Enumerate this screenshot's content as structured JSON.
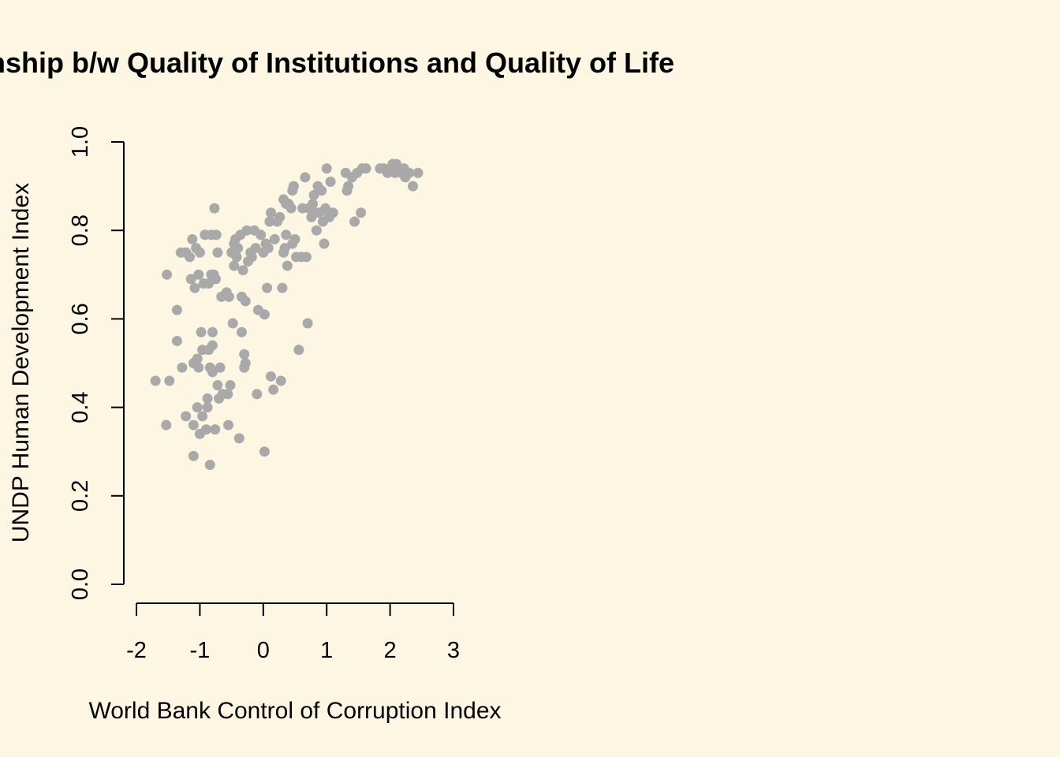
{
  "background_color": "#FDF6E3",
  "point_color": "#A9A9A9",
  "chart_data": {
    "type": "scatter",
    "title": "Relationship b/w Quality of Institutions and Quality of Life",
    "xlabel": "World Bank Control of Corruption Index",
    "ylabel": "UNDP Human Development Index",
    "xlim": [
      -2,
      3
    ],
    "ylim": [
      0,
      1
    ],
    "x_ticks": [
      -2,
      -1,
      0,
      1,
      2,
      3
    ],
    "y_ticks": [
      0.0,
      0.2,
      0.4,
      0.6,
      0.8,
      1.0
    ],
    "x_tick_labels": [
      "-2",
      "-1",
      "0",
      "1",
      "2",
      "3"
    ],
    "y_tick_labels": [
      "0.0",
      "0.2",
      "0.4",
      "0.6",
      "0.8",
      "1.0"
    ],
    "grid": false,
    "points": [
      [
        -1.7,
        0.46
      ],
      [
        -1.53,
        0.36
      ],
      [
        -1.48,
        0.46
      ],
      [
        -1.52,
        0.7
      ],
      [
        -1.36,
        0.55
      ],
      [
        -1.36,
        0.62
      ],
      [
        -1.3,
        0.75
      ],
      [
        -1.28,
        0.49
      ],
      [
        -1.22,
        0.38
      ],
      [
        -1.22,
        0.75
      ],
      [
        -1.16,
        0.74
      ],
      [
        -1.14,
        0.69
      ],
      [
        -1.12,
        0.78
      ],
      [
        -1.1,
        0.36
      ],
      [
        -1.1,
        0.29
      ],
      [
        -1.1,
        0.5
      ],
      [
        -1.08,
        0.67
      ],
      [
        -1.06,
        0.76
      ],
      [
        -1.04,
        0.4
      ],
      [
        -1.04,
        0.51
      ],
      [
        -1.02,
        0.7
      ],
      [
        -1.02,
        0.49
      ],
      [
        -1.0,
        0.34
      ],
      [
        -1.0,
        0.75
      ],
      [
        -0.98,
        0.57
      ],
      [
        -0.96,
        0.38
      ],
      [
        -0.96,
        0.53
      ],
      [
        -0.94,
        0.68
      ],
      [
        -0.92,
        0.79
      ],
      [
        -0.9,
        0.35
      ],
      [
        -0.88,
        0.4
      ],
      [
        -0.88,
        0.42
      ],
      [
        -0.86,
        0.53
      ],
      [
        -0.86,
        0.68
      ],
      [
        -0.84,
        0.49
      ],
      [
        -0.84,
        0.27
      ],
      [
        -0.82,
        0.7
      ],
      [
        -0.82,
        0.79
      ],
      [
        -0.8,
        0.48
      ],
      [
        -0.8,
        0.57
      ],
      [
        -0.8,
        0.54
      ],
      [
        -0.78,
        0.7
      ],
      [
        -0.77,
        0.85
      ],
      [
        -0.76,
        0.35
      ],
      [
        -0.75,
        0.69
      ],
      [
        -0.74,
        0.79
      ],
      [
        -0.72,
        0.75
      ],
      [
        -0.72,
        0.45
      ],
      [
        -0.7,
        0.42
      ],
      [
        -0.68,
        0.49
      ],
      [
        -0.66,
        0.65
      ],
      [
        -0.64,
        0.43
      ],
      [
        -0.58,
        0.66
      ],
      [
        -0.56,
        0.43
      ],
      [
        -0.55,
        0.36
      ],
      [
        -0.54,
        0.65
      ],
      [
        -0.52,
        0.45
      ],
      [
        -0.5,
        0.75
      ],
      [
        -0.48,
        0.59
      ],
      [
        -0.46,
        0.72
      ],
      [
        -0.46,
        0.77
      ],
      [
        -0.44,
        0.78
      ],
      [
        -0.42,
        0.74
      ],
      [
        -0.4,
        0.76
      ],
      [
        -0.38,
        0.33
      ],
      [
        -0.36,
        0.79
      ],
      [
        -0.34,
        0.57
      ],
      [
        -0.34,
        0.65
      ],
      [
        -0.32,
        0.71
      ],
      [
        -0.3,
        0.49
      ],
      [
        -0.3,
        0.52
      ],
      [
        -0.28,
        0.5
      ],
      [
        -0.28,
        0.64
      ],
      [
        -0.26,
        0.8
      ],
      [
        -0.24,
        0.73
      ],
      [
        -0.2,
        0.75
      ],
      [
        -0.18,
        0.74
      ],
      [
        -0.14,
        0.8
      ],
      [
        -0.12,
        0.76
      ],
      [
        -0.1,
        0.43
      ],
      [
        -0.08,
        0.62
      ],
      [
        -0.04,
        0.79
      ],
      [
        0.0,
        0.75
      ],
      [
        0.02,
        0.3
      ],
      [
        0.02,
        0.61
      ],
      [
        0.04,
        0.77
      ],
      [
        0.06,
        0.67
      ],
      [
        0.08,
        0.76
      ],
      [
        0.1,
        0.82
      ],
      [
        0.12,
        0.84
      ],
      [
        0.12,
        0.47
      ],
      [
        0.16,
        0.44
      ],
      [
        0.18,
        0.78
      ],
      [
        0.22,
        0.82
      ],
      [
        0.26,
        0.83
      ],
      [
        0.28,
        0.46
      ],
      [
        0.3,
        0.67
      ],
      [
        0.32,
        0.87
      ],
      [
        0.32,
        0.75
      ],
      [
        0.34,
        0.76
      ],
      [
        0.36,
        0.86
      ],
      [
        0.36,
        0.79
      ],
      [
        0.38,
        0.72
      ],
      [
        0.4,
        0.86
      ],
      [
        0.44,
        0.85
      ],
      [
        0.46,
        0.77
      ],
      [
        0.46,
        0.89
      ],
      [
        0.48,
        0.9
      ],
      [
        0.5,
        0.78
      ],
      [
        0.52,
        0.74
      ],
      [
        0.56,
        0.53
      ],
      [
        0.6,
        0.74
      ],
      [
        0.62,
        0.85
      ],
      [
        0.66,
        0.92
      ],
      [
        0.68,
        0.74
      ],
      [
        0.7,
        0.59
      ],
      [
        0.72,
        0.85
      ],
      [
        0.76,
        0.83
      ],
      [
        0.78,
        0.86
      ],
      [
        0.8,
        0.88
      ],
      [
        0.82,
        0.84
      ],
      [
        0.84,
        0.8
      ],
      [
        0.86,
        0.9
      ],
      [
        0.88,
        0.84
      ],
      [
        0.92,
        0.89
      ],
      [
        0.94,
        0.82
      ],
      [
        0.96,
        0.77
      ],
      [
        0.98,
        0.85
      ],
      [
        1.0,
        0.94
      ],
      [
        1.02,
        0.84
      ],
      [
        1.04,
        0.83
      ],
      [
        1.06,
        0.91
      ],
      [
        1.1,
        0.84
      ],
      [
        1.3,
        0.93
      ],
      [
        1.32,
        0.89
      ],
      [
        1.34,
        0.9
      ],
      [
        1.4,
        0.92
      ],
      [
        1.44,
        0.82
      ],
      [
        1.48,
        0.93
      ],
      [
        1.54,
        0.84
      ],
      [
        1.56,
        0.94
      ],
      [
        1.62,
        0.94
      ],
      [
        1.84,
        0.94
      ],
      [
        1.9,
        0.94
      ],
      [
        1.96,
        0.93
      ],
      [
        2.0,
        0.94
      ],
      [
        2.04,
        0.95
      ],
      [
        2.08,
        0.93
      ],
      [
        2.1,
        0.95
      ],
      [
        2.14,
        0.94
      ],
      [
        2.18,
        0.93
      ],
      [
        2.22,
        0.94
      ],
      [
        2.24,
        0.92
      ],
      [
        2.3,
        0.93
      ],
      [
        2.36,
        0.9
      ],
      [
        2.44,
        0.93
      ]
    ]
  }
}
